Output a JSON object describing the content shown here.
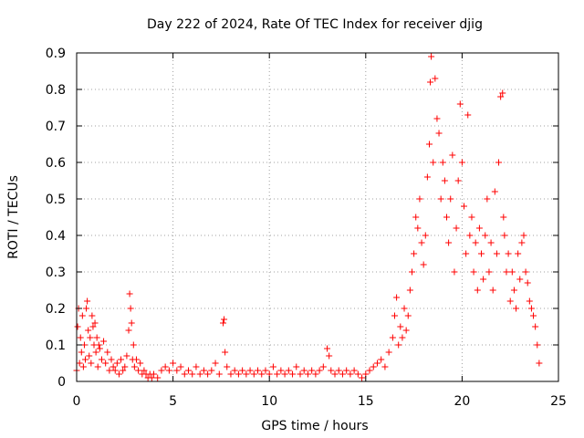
{
  "chart_data": {
    "type": "scatter",
    "title": "Day 222 of 2024, Rate Of TEC Index for receiver djig",
    "xlabel": "GPS time / hours",
    "ylabel": "ROTI / TECUs",
    "xlim": [
      0,
      25
    ],
    "ylim": [
      0,
      0.9
    ],
    "xticks": [
      0,
      5,
      10,
      15,
      20,
      25
    ],
    "yticks": [
      0,
      0.1,
      0.2,
      0.3,
      0.4,
      0.5,
      0.6,
      0.7,
      0.8,
      0.9
    ],
    "ytick_labels": [
      "0",
      "0.1",
      "0.2",
      "0.3",
      "0.4",
      "0.5",
      "0.6",
      "0.7",
      "0.8",
      "0.9"
    ],
    "grid": true,
    "marker": "+",
    "color": "#ff0000",
    "series": [
      {
        "points": [
          [
            0.0,
            0.03
          ],
          [
            0.05,
            0.15
          ],
          [
            0.1,
            0.2
          ],
          [
            0.15,
            0.05
          ],
          [
            0.2,
            0.12
          ],
          [
            0.25,
            0.08
          ],
          [
            0.3,
            0.18
          ],
          [
            0.35,
            0.04
          ],
          [
            0.4,
            0.1
          ],
          [
            0.45,
            0.06
          ],
          [
            0.5,
            0.2
          ],
          [
            0.55,
            0.22
          ],
          [
            0.6,
            0.14
          ],
          [
            0.65,
            0.07
          ],
          [
            0.7,
            0.12
          ],
          [
            0.75,
            0.05
          ],
          [
            0.8,
            0.18
          ],
          [
            0.85,
            0.15
          ],
          [
            0.9,
            0.1
          ],
          [
            0.95,
            0.16
          ],
          [
            1.0,
            0.08
          ],
          [
            1.05,
            0.12
          ],
          [
            1.1,
            0.04
          ],
          [
            1.15,
            0.1
          ],
          [
            1.2,
            0.09
          ],
          [
            1.3,
            0.06
          ],
          [
            1.4,
            0.11
          ],
          [
            1.5,
            0.05
          ],
          [
            1.6,
            0.08
          ],
          [
            1.7,
            0.03
          ],
          [
            1.8,
            0.06
          ],
          [
            1.9,
            0.04
          ],
          [
            2.0,
            0.03
          ],
          [
            2.1,
            0.05
          ],
          [
            2.2,
            0.02
          ],
          [
            2.3,
            0.06
          ],
          [
            2.4,
            0.03
          ],
          [
            2.5,
            0.04
          ],
          [
            2.6,
            0.07
          ],
          [
            2.7,
            0.14
          ],
          [
            2.75,
            0.24
          ],
          [
            2.8,
            0.2
          ],
          [
            2.85,
            0.16
          ],
          [
            2.9,
            0.06
          ],
          [
            2.95,
            0.1
          ],
          [
            3.0,
            0.04
          ],
          [
            3.1,
            0.06
          ],
          [
            3.2,
            0.03
          ],
          [
            3.3,
            0.05
          ],
          [
            3.4,
            0.02
          ],
          [
            3.5,
            0.03
          ],
          [
            3.6,
            0.02
          ],
          [
            3.7,
            0.01
          ],
          [
            3.8,
            0.02
          ],
          [
            3.9,
            0.01
          ],
          [
            4.0,
            0.02
          ],
          [
            4.2,
            0.01
          ],
          [
            4.4,
            0.03
          ],
          [
            4.6,
            0.04
          ],
          [
            4.8,
            0.03
          ],
          [
            5.0,
            0.05
          ],
          [
            5.2,
            0.03
          ],
          [
            5.4,
            0.04
          ],
          [
            5.6,
            0.02
          ],
          [
            5.8,
            0.03
          ],
          [
            6.0,
            0.02
          ],
          [
            6.2,
            0.04
          ],
          [
            6.4,
            0.02
          ],
          [
            6.6,
            0.03
          ],
          [
            6.8,
            0.02
          ],
          [
            7.0,
            0.03
          ],
          [
            7.2,
            0.05
          ],
          [
            7.4,
            0.02
          ],
          [
            7.6,
            0.16
          ],
          [
            7.65,
            0.17
          ],
          [
            7.7,
            0.08
          ],
          [
            7.8,
            0.04
          ],
          [
            8.0,
            0.02
          ],
          [
            8.2,
            0.03
          ],
          [
            8.4,
            0.02
          ],
          [
            8.6,
            0.03
          ],
          [
            8.8,
            0.02
          ],
          [
            9.0,
            0.03
          ],
          [
            9.2,
            0.02
          ],
          [
            9.4,
            0.03
          ],
          [
            9.6,
            0.02
          ],
          [
            9.8,
            0.03
          ],
          [
            10.0,
            0.02
          ],
          [
            10.2,
            0.04
          ],
          [
            10.4,
            0.02
          ],
          [
            10.6,
            0.03
          ],
          [
            10.8,
            0.02
          ],
          [
            11.0,
            0.03
          ],
          [
            11.2,
            0.02
          ],
          [
            11.4,
            0.04
          ],
          [
            11.6,
            0.02
          ],
          [
            11.8,
            0.03
          ],
          [
            12.0,
            0.02
          ],
          [
            12.2,
            0.03
          ],
          [
            12.4,
            0.02
          ],
          [
            12.6,
            0.03
          ],
          [
            12.8,
            0.04
          ],
          [
            13.0,
            0.09
          ],
          [
            13.1,
            0.07
          ],
          [
            13.2,
            0.03
          ],
          [
            13.4,
            0.02
          ],
          [
            13.6,
            0.03
          ],
          [
            13.8,
            0.02
          ],
          [
            14.0,
            0.03
          ],
          [
            14.2,
            0.02
          ],
          [
            14.4,
            0.03
          ],
          [
            14.6,
            0.02
          ],
          [
            14.8,
            0.01
          ],
          [
            15.0,
            0.02
          ],
          [
            15.2,
            0.03
          ],
          [
            15.4,
            0.04
          ],
          [
            15.6,
            0.05
          ],
          [
            15.8,
            0.06
          ],
          [
            16.0,
            0.04
          ],
          [
            16.2,
            0.08
          ],
          [
            16.4,
            0.12
          ],
          [
            16.5,
            0.18
          ],
          [
            16.6,
            0.23
          ],
          [
            16.7,
            0.1
          ],
          [
            16.8,
            0.15
          ],
          [
            16.9,
            0.12
          ],
          [
            17.0,
            0.2
          ],
          [
            17.1,
            0.14
          ],
          [
            17.2,
            0.18
          ],
          [
            17.3,
            0.25
          ],
          [
            17.4,
            0.3
          ],
          [
            17.5,
            0.35
          ],
          [
            17.6,
            0.45
          ],
          [
            17.7,
            0.42
          ],
          [
            17.8,
            0.5
          ],
          [
            17.9,
            0.38
          ],
          [
            18.0,
            0.32
          ],
          [
            18.1,
            0.4
          ],
          [
            18.2,
            0.56
          ],
          [
            18.3,
            0.65
          ],
          [
            18.35,
            0.82
          ],
          [
            18.4,
            0.89
          ],
          [
            18.5,
            0.6
          ],
          [
            18.6,
            0.83
          ],
          [
            18.7,
            0.72
          ],
          [
            18.8,
            0.68
          ],
          [
            18.9,
            0.5
          ],
          [
            19.0,
            0.6
          ],
          [
            19.1,
            0.55
          ],
          [
            19.2,
            0.45
          ],
          [
            19.3,
            0.38
          ],
          [
            19.4,
            0.5
          ],
          [
            19.5,
            0.62
          ],
          [
            19.6,
            0.3
          ],
          [
            19.7,
            0.42
          ],
          [
            19.8,
            0.55
          ],
          [
            19.9,
            0.76
          ],
          [
            20.0,
            0.6
          ],
          [
            20.1,
            0.48
          ],
          [
            20.2,
            0.35
          ],
          [
            20.3,
            0.73
          ],
          [
            20.4,
            0.4
          ],
          [
            20.5,
            0.45
          ],
          [
            20.6,
            0.3
          ],
          [
            20.7,
            0.38
          ],
          [
            20.8,
            0.25
          ],
          [
            20.9,
            0.42
          ],
          [
            21.0,
            0.35
          ],
          [
            21.1,
            0.28
          ],
          [
            21.2,
            0.4
          ],
          [
            21.3,
            0.5
          ],
          [
            21.4,
            0.3
          ],
          [
            21.5,
            0.38
          ],
          [
            21.6,
            0.25
          ],
          [
            21.7,
            0.52
          ],
          [
            21.8,
            0.35
          ],
          [
            21.9,
            0.6
          ],
          [
            22.0,
            0.78
          ],
          [
            22.1,
            0.79
          ],
          [
            22.15,
            0.45
          ],
          [
            22.2,
            0.4
          ],
          [
            22.3,
            0.3
          ],
          [
            22.4,
            0.35
          ],
          [
            22.5,
            0.22
          ],
          [
            22.6,
            0.3
          ],
          [
            22.7,
            0.25
          ],
          [
            22.8,
            0.2
          ],
          [
            22.9,
            0.35
          ],
          [
            23.0,
            0.28
          ],
          [
            23.1,
            0.38
          ],
          [
            23.2,
            0.4
          ],
          [
            23.3,
            0.3
          ],
          [
            23.4,
            0.27
          ],
          [
            23.5,
            0.22
          ],
          [
            23.6,
            0.2
          ],
          [
            23.7,
            0.18
          ],
          [
            23.8,
            0.15
          ],
          [
            23.9,
            0.1
          ],
          [
            24.0,
            0.05
          ]
        ]
      }
    ]
  }
}
